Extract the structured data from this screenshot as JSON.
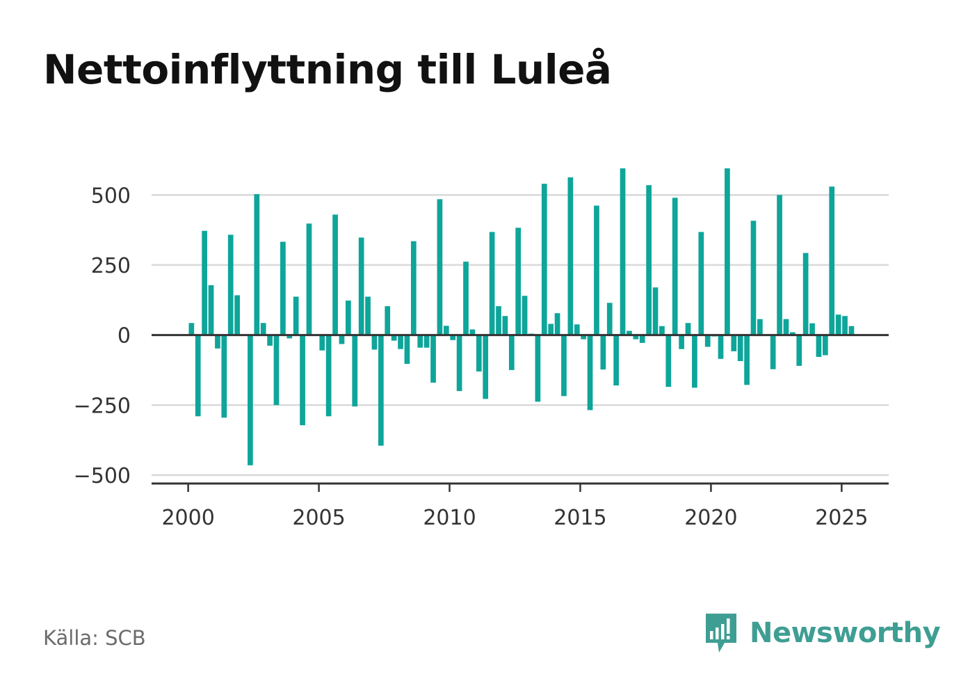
{
  "source": "Källa: SCB",
  "brand": {
    "name": "Newsworthy",
    "icon": "newsworthy-logo-icon",
    "color": "#3f9e93"
  },
  "colors": {
    "bars": "#0ea59a",
    "grid": "#d9d9d9",
    "axis": "#333333"
  },
  "chart_data": {
    "type": "bar",
    "title": "Nettoinflyttning till Luleå",
    "xlabel": "",
    "ylabel": "",
    "ylim": [
      -530,
      600
    ],
    "xlim": [
      1998.6,
      2026.8
    ],
    "grid": true,
    "y_ticks": [
      500,
      250,
      0,
      -250,
      -500
    ],
    "y_tick_labels": [
      "500",
      "250",
      "0",
      "−250",
      "−500"
    ],
    "x_ticks": [
      2000,
      2005,
      2010,
      2015,
      2020,
      2025
    ],
    "x_tick_labels": [
      "2000",
      "2005",
      "2010",
      "2015",
      "2020",
      "2025"
    ],
    "x": [
      "2000-Q1",
      "2000-Q2",
      "2000-Q3",
      "2000-Q4",
      "2001-Q1",
      "2001-Q2",
      "2001-Q3",
      "2001-Q4",
      "2002-Q1",
      "2002-Q2",
      "2002-Q3",
      "2002-Q4",
      "2003-Q1",
      "2003-Q2",
      "2003-Q3",
      "2003-Q4",
      "2004-Q1",
      "2004-Q2",
      "2004-Q3",
      "2004-Q4",
      "2005-Q1",
      "2005-Q2",
      "2005-Q3",
      "2005-Q4",
      "2006-Q1",
      "2006-Q2",
      "2006-Q3",
      "2006-Q4",
      "2007-Q1",
      "2007-Q2",
      "2007-Q3",
      "2007-Q4",
      "2008-Q1",
      "2008-Q2",
      "2008-Q3",
      "2008-Q4",
      "2009-Q1",
      "2009-Q2",
      "2009-Q3",
      "2009-Q4",
      "2010-Q1",
      "2010-Q2",
      "2010-Q3",
      "2010-Q4",
      "2011-Q1",
      "2011-Q2",
      "2011-Q3",
      "2011-Q4",
      "2012-Q1",
      "2012-Q2",
      "2012-Q3",
      "2012-Q4",
      "2013-Q1",
      "2013-Q2",
      "2013-Q3",
      "2013-Q4",
      "2014-Q1",
      "2014-Q2",
      "2014-Q3",
      "2014-Q4",
      "2015-Q1",
      "2015-Q2",
      "2015-Q3",
      "2015-Q4",
      "2016-Q1",
      "2016-Q2",
      "2016-Q3",
      "2016-Q4",
      "2017-Q1",
      "2017-Q2",
      "2017-Q3",
      "2017-Q4",
      "2018-Q1",
      "2018-Q2",
      "2018-Q3",
      "2018-Q4",
      "2019-Q1",
      "2019-Q2",
      "2019-Q3",
      "2019-Q4",
      "2020-Q1",
      "2020-Q2",
      "2020-Q3",
      "2020-Q4",
      "2021-Q1",
      "2021-Q2",
      "2021-Q3",
      "2021-Q4",
      "2022-Q1",
      "2022-Q2",
      "2022-Q3",
      "2022-Q4",
      "2023-Q1",
      "2023-Q2",
      "2023-Q3",
      "2023-Q4",
      "2024-Q1",
      "2024-Q2",
      "2024-Q3",
      "2024-Q4",
      "2025-Q1",
      "2025-Q2"
    ],
    "values": [
      43,
      -290,
      372,
      178,
      -48,
      -295,
      358,
      142,
      -3,
      -465,
      503,
      43,
      -38,
      -250,
      333,
      -12,
      137,
      -322,
      398,
      -3,
      -55,
      -290,
      430,
      -32,
      123,
      -255,
      348,
      137,
      -52,
      -395,
      103,
      -20,
      -50,
      -103,
      335,
      -45,
      -45,
      -170,
      485,
      33,
      -18,
      -200,
      262,
      20,
      -130,
      -228,
      368,
      103,
      68,
      -125,
      383,
      140,
      5,
      -238,
      540,
      40,
      78,
      -218,
      563,
      38,
      -15,
      -268,
      462,
      -123,
      115,
      -180,
      595,
      15,
      -15,
      -28,
      535,
      170,
      32,
      -185,
      490,
      -50,
      43,
      -188,
      368,
      -42,
      -5,
      -85,
      595,
      -58,
      -93,
      -178,
      408,
      57,
      -3,
      -122,
      500,
      57,
      10,
      -110,
      293,
      42,
      -78,
      -72,
      530,
      73,
      68,
      32
    ]
  }
}
